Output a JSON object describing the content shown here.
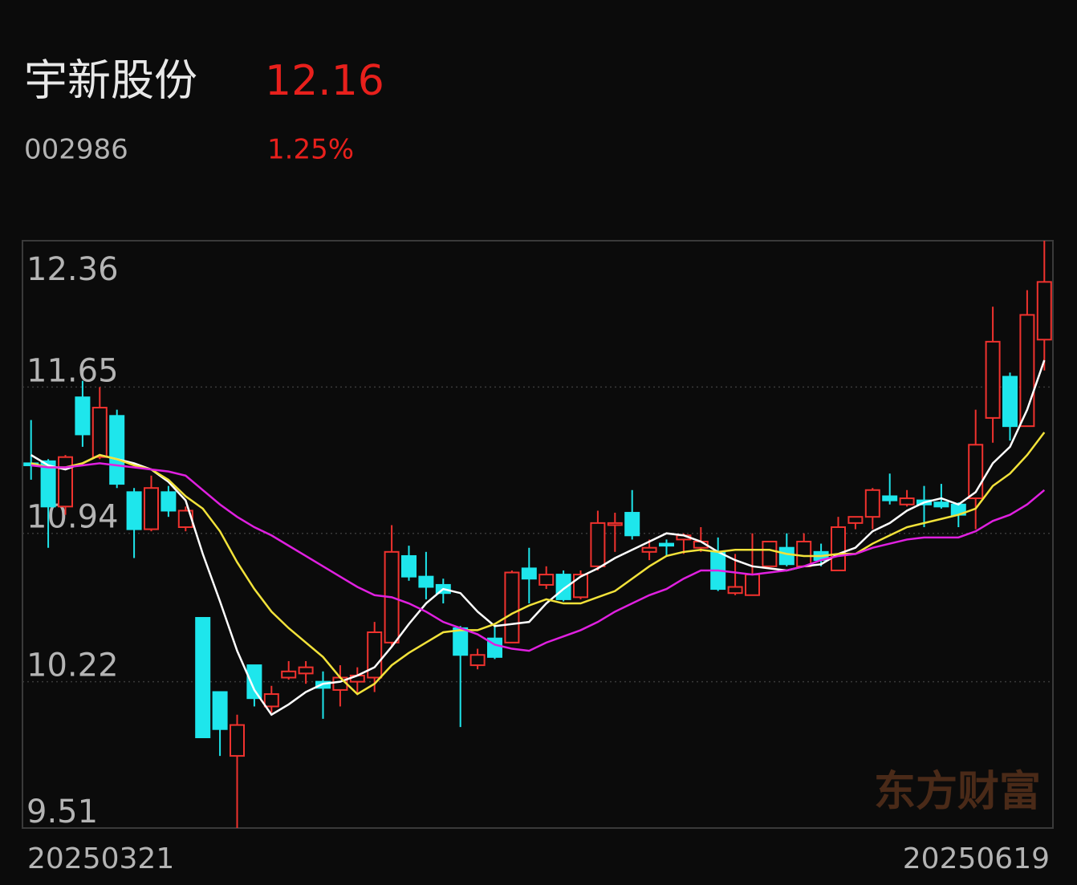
{
  "header": {
    "name": "宇新股份",
    "price": "12.16",
    "code": "002986",
    "change": "1.25%"
  },
  "watermark": "东方财富",
  "chart_data": {
    "type": "candlestick",
    "categories": [
      "20250321",
      null,
      null,
      null,
      null,
      null,
      null,
      null,
      null,
      null,
      null,
      null,
      null,
      null,
      null,
      null,
      null,
      null,
      null,
      null,
      null,
      null,
      null,
      null,
      null,
      null,
      null,
      null,
      null,
      null,
      null,
      null,
      null,
      null,
      null,
      null,
      null,
      null,
      null,
      null,
      null,
      null,
      null,
      null,
      null,
      null,
      null,
      null,
      null,
      null,
      null,
      null,
      null,
      null,
      null,
      null,
      null,
      null,
      null,
      "20250619"
    ],
    "open": [
      11.28,
      11.29,
      11.07,
      11.6,
      11.31,
      11.51,
      11.14,
      10.96,
      11.14,
      10.97,
      10.53,
      10.17,
      9.86,
      10.3,
      10.1,
      10.24,
      10.26,
      10.22,
      10.18,
      10.22,
      10.24,
      10.41,
      10.83,
      10.73,
      10.69,
      10.48,
      10.3,
      10.43,
      10.41,
      10.77,
      10.69,
      10.74,
      10.63,
      10.78,
      10.98,
      11.04,
      10.85,
      10.89,
      10.91,
      10.87,
      10.85,
      10.65,
      10.64,
      10.78,
      10.87,
      10.78,
      10.85,
      10.76,
      10.99,
      11.02,
      11.12,
      11.08,
      11.1,
      11.09,
      11.08,
      11.11,
      11.5,
      11.7,
      11.46,
      11.88
    ],
    "high": [
      11.49,
      11.3,
      11.32,
      11.68,
      11.65,
      11.54,
      11.16,
      11.22,
      11.17,
      11.07,
      10.53,
      10.17,
      10.06,
      10.3,
      10.2,
      10.32,
      10.32,
      10.27,
      10.3,
      10.29,
      10.51,
      10.98,
      10.88,
      10.85,
      10.72,
      10.49,
      10.38,
      10.49,
      10.76,
      10.87,
      10.78,
      10.76,
      10.76,
      11.05,
      11.04,
      11.15,
      10.91,
      10.91,
      10.94,
      10.97,
      10.92,
      10.84,
      10.94,
      10.9,
      10.94,
      10.94,
      10.89,
      11.02,
      11.02,
      11.16,
      11.23,
      11.15,
      11.17,
      11.18,
      11.09,
      11.54,
      12.04,
      11.72,
      12.12,
      12.36
    ],
    "low": [
      11.2,
      10.87,
      11.03,
      11.36,
      11.3,
      11.16,
      10.82,
      10.95,
      11.02,
      10.95,
      9.95,
      9.86,
      9.51,
      10.1,
      10.07,
      10.23,
      10.21,
      10.04,
      10.1,
      10.16,
      10.17,
      10.39,
      10.71,
      10.62,
      10.6,
      10.0,
      10.28,
      10.33,
      10.41,
      10.6,
      10.67,
      10.61,
      10.62,
      10.76,
      10.85,
      10.91,
      10.81,
      10.83,
      10.84,
      10.85,
      10.66,
      10.64,
      10.64,
      10.78,
      10.78,
      10.78,
      10.78,
      10.76,
      10.96,
      10.96,
      11.08,
      11.07,
      10.97,
      11.06,
      10.97,
      10.96,
      11.38,
      11.39,
      11.46,
      11.73
    ],
    "close": [
      11.27,
      11.07,
      11.31,
      11.42,
      11.55,
      11.18,
      10.96,
      11.16,
      11.05,
      11.05,
      9.95,
      9.99,
      10.01,
      10.14,
      10.16,
      10.27,
      10.29,
      10.19,
      10.24,
      10.25,
      10.46,
      10.85,
      10.73,
      10.68,
      10.65,
      10.35,
      10.35,
      10.34,
      10.75,
      10.72,
      10.74,
      10.62,
      10.74,
      10.99,
      10.99,
      10.93,
      10.87,
      10.88,
      10.93,
      10.9,
      10.67,
      10.68,
      10.74,
      10.9,
      10.79,
      10.9,
      10.81,
      10.97,
      11.02,
      11.15,
      11.1,
      11.11,
      11.08,
      11.07,
      11.03,
      11.37,
      11.87,
      11.46,
      12.0,
      12.16
    ],
    "up_color": "#f0322e",
    "down_color": "#1ee6ec",
    "series": [
      {
        "color": "#ffffff",
        "values": [
          11.32,
          11.27,
          11.25,
          11.28,
          11.32,
          11.3,
          11.28,
          11.25,
          11.19,
          11.1,
          10.84,
          10.61,
          10.37,
          10.18,
          10.06,
          10.11,
          10.17,
          10.21,
          10.22,
          10.25,
          10.29,
          10.39,
          10.5,
          10.6,
          10.67,
          10.65,
          10.56,
          10.49,
          10.5,
          10.51,
          10.6,
          10.67,
          10.73,
          10.77,
          10.82,
          10.86,
          10.9,
          10.94,
          10.93,
          10.9,
          10.85,
          10.81,
          10.78,
          10.77,
          10.76,
          10.78,
          10.79,
          10.84,
          10.87,
          10.95,
          10.99,
          11.05,
          11.09,
          11.11,
          11.08,
          11.14,
          11.28,
          11.36,
          11.54,
          11.78
        ]
      },
      {
        "color": "#f2e23a",
        "values": [
          11.28,
          11.26,
          11.26,
          11.28,
          11.32,
          11.3,
          11.27,
          11.25,
          11.2,
          11.12,
          11.06,
          10.95,
          10.8,
          10.67,
          10.56,
          10.48,
          10.41,
          10.34,
          10.24,
          10.16,
          10.21,
          10.3,
          10.36,
          10.41,
          10.46,
          10.47,
          10.47,
          10.5,
          10.55,
          10.59,
          10.62,
          10.6,
          10.6,
          10.63,
          10.66,
          10.72,
          10.78,
          10.83,
          10.85,
          10.86,
          10.85,
          10.86,
          10.86,
          10.86,
          10.84,
          10.83,
          10.83,
          10.84,
          10.84,
          10.89,
          10.93,
          10.97,
          10.99,
          11.01,
          11.03,
          11.06,
          11.17,
          11.23,
          11.32,
          11.43
        ]
      },
      {
        "color": "#e020e0",
        "values": [
          11.27,
          11.26,
          11.26,
          11.27,
          11.28,
          11.27,
          11.26,
          11.25,
          11.24,
          11.22,
          11.15,
          11.08,
          11.02,
          10.97,
          10.93,
          10.88,
          10.83,
          10.78,
          10.73,
          10.68,
          10.64,
          10.63,
          10.6,
          10.56,
          10.51,
          10.48,
          10.45,
          10.4,
          10.38,
          10.37,
          10.41,
          10.44,
          10.47,
          10.51,
          10.56,
          10.6,
          10.64,
          10.67,
          10.72,
          10.76,
          10.76,
          10.75,
          10.74,
          10.75,
          10.76,
          10.78,
          10.81,
          10.83,
          10.84,
          10.87,
          10.89,
          10.91,
          10.92,
          10.92,
          10.92,
          10.95,
          11.0,
          11.03,
          11.08,
          11.15
        ]
      }
    ],
    "ylim": [
      9.51,
      12.36
    ],
    "yticks": [
      12.36,
      11.65,
      10.94,
      10.22,
      9.51
    ],
    "grid": true
  }
}
